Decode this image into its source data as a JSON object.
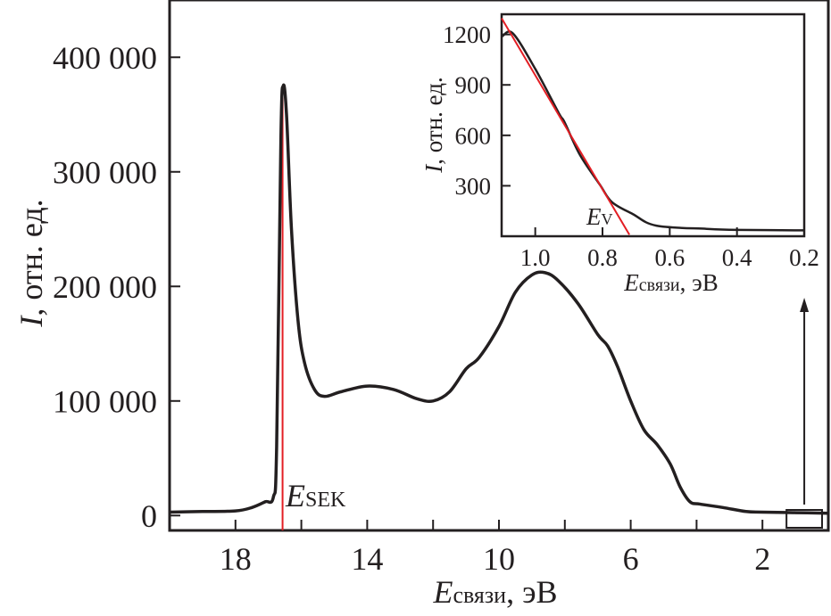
{
  "chart_data": [
    {
      "type": "line",
      "xlabel": {
        "symbol": "E",
        "subscript": "связи",
        "unit": ", эВ"
      },
      "ylabel": {
        "symbol": "I",
        "unit": ", отн. ед."
      },
      "xlim": [
        20,
        0
      ],
      "ylim": [
        -13000,
        450000
      ],
      "x_reversed": true,
      "x_ticks": [
        18,
        16,
        14,
        12,
        10,
        8,
        6,
        4,
        2
      ],
      "x_tick_labels": [
        "18",
        "",
        "14",
        "",
        "10",
        "",
        "6",
        "",
        "2"
      ],
      "y_ticks": [
        0,
        100000,
        200000,
        300000,
        400000
      ],
      "y_tick_labels": [
        "0",
        "100 000",
        "200 000",
        "300 000",
        "400 000"
      ],
      "grid": false,
      "line_color": "#231f20",
      "series": [
        {
          "points": [
            [
              20,
              3000
            ],
            [
              19,
              3500
            ],
            [
              18,
              4000
            ],
            [
              17.5,
              7000
            ],
            [
              17.1,
              12000
            ],
            [
              16.85,
              16000
            ],
            [
              16.75,
              60000
            ],
            [
              16.62,
              330000
            ],
            [
              16.55,
              375000
            ],
            [
              16.45,
              350000
            ],
            [
              16.3,
              250000
            ],
            [
              16.1,
              170000
            ],
            [
              15.9,
              133000
            ],
            [
              15.6,
              110000
            ],
            [
              15.3,
              104000
            ],
            [
              14.8,
              108000
            ],
            [
              14,
              113000
            ],
            [
              13.2,
              110000
            ],
            [
              12.5,
              102000
            ],
            [
              12,
              100000
            ],
            [
              11.5,
              108000
            ],
            [
              11,
              128000
            ],
            [
              10.6,
              138000
            ],
            [
              10,
              165000
            ],
            [
              9.5,
              195000
            ],
            [
              9,
              210000
            ],
            [
              8.6,
              212000
            ],
            [
              8.2,
              205000
            ],
            [
              7.6,
              185000
            ],
            [
              7,
              158000
            ],
            [
              6.7,
              148000
            ],
            [
              6.4,
              130000
            ],
            [
              6,
              100000
            ],
            [
              5.6,
              75000
            ],
            [
              5.2,
              62000
            ],
            [
              4.8,
              45000
            ],
            [
              4.5,
              25000
            ],
            [
              4.2,
              12000
            ],
            [
              3.9,
              10000
            ],
            [
              3.2,
              7000
            ],
            [
              2.5,
              3500
            ],
            [
              2,
              3000
            ],
            [
              1,
              2500
            ],
            [
              0,
              2000
            ]
          ]
        }
      ],
      "annotations": [
        {
          "type": "vline",
          "x": 16.57,
          "color": "#e31e24",
          "label_symbol": "E",
          "label_subscript": "SEK"
        },
        {
          "type": "zoom-box",
          "x_range": [
            1.27,
            0.19
          ],
          "note": "arrow to inset"
        }
      ]
    },
    {
      "type": "line",
      "inset": true,
      "xlabel": {
        "symbol": "E",
        "subscript": "связи",
        "unit": ", эВ"
      },
      "ylabel": {
        "symbol": "I",
        "unit": ", отн. ед."
      },
      "xlim": [
        1.1,
        0.2
      ],
      "ylim": [
        0,
        1320
      ],
      "x_reversed": true,
      "x_ticks": [
        1.0,
        0.8,
        0.6,
        0.4,
        0.2
      ],
      "x_tick_labels": [
        "1.0",
        "0.8",
        "0.6",
        "0.4",
        "0.2"
      ],
      "y_ticks": [
        300,
        600,
        900,
        1200
      ],
      "y_tick_labels": [
        "300",
        "600",
        "900",
        "1200"
      ],
      "grid": false,
      "series": [
        {
          "points": [
            [
              1.098,
              1190
            ],
            [
              1.066,
              1205
            ],
            [
              1.0,
              995
            ],
            [
              0.93,
              732
            ],
            [
              0.913,
              679
            ],
            [
              0.868,
              487
            ],
            [
              0.808,
              307
            ],
            [
              0.772,
              203
            ],
            [
              0.71,
              132
            ],
            [
              0.64,
              63
            ],
            [
              0.49,
              44
            ],
            [
              0.4,
              38
            ],
            [
              0.2,
              35
            ]
          ]
        }
      ],
      "fit_line": {
        "points": [
          [
            1.1,
            1296
          ],
          [
            0.72,
            9
          ]
        ],
        "color": "#e31e24"
      },
      "annotations": [
        {
          "label_symbol": "E",
          "label_subscript": "V",
          "x": 0.72
        }
      ]
    }
  ]
}
